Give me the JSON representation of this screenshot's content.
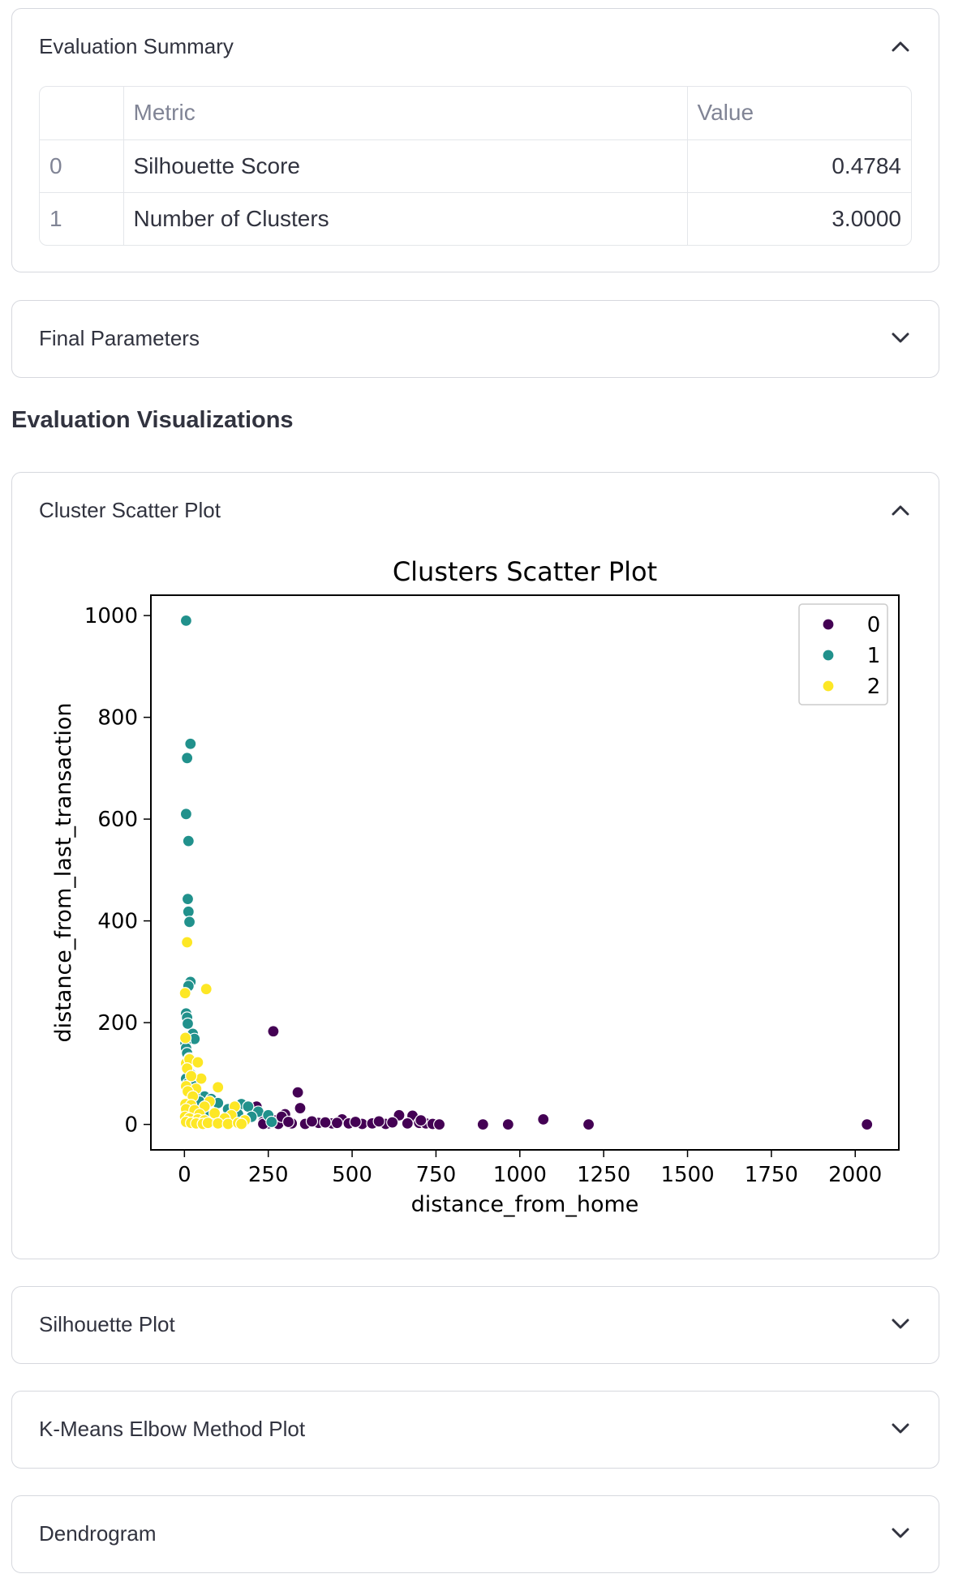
{
  "evaluation_summary": {
    "title": "Evaluation Summary",
    "expanded": true,
    "table": {
      "columns": [
        "",
        "Metric",
        "Value"
      ],
      "rows": [
        {
          "index": "0",
          "metric": "Silhouette Score",
          "value": "0.4784"
        },
        {
          "index": "1",
          "metric": "Number of Clusters",
          "value": "3.0000"
        }
      ]
    }
  },
  "final_parameters": {
    "title": "Final Parameters",
    "expanded": false
  },
  "section_heading": "Evaluation Visualizations",
  "cluster_scatter": {
    "title": "Cluster Scatter Plot",
    "expanded": true
  },
  "silhouette_plot": {
    "title": "Silhouette Plot",
    "expanded": false
  },
  "elbow_plot": {
    "title": "K-Means Elbow Method Plot",
    "expanded": false
  },
  "dendrogram": {
    "title": "Dendrogram",
    "expanded": false
  },
  "icons": {
    "expanded": "chevron-up-icon",
    "collapsed": "chevron-down-icon"
  },
  "chart_data": {
    "type": "scatter",
    "title": "Clusters Scatter Plot",
    "xlabel": "distance_from_home",
    "ylabel": "distance_from_last_transaction",
    "xlim": [
      -100,
      2130
    ],
    "ylim": [
      -50,
      1040
    ],
    "xticks": [
      0,
      250,
      500,
      750,
      1000,
      1250,
      1500,
      1750,
      2000
    ],
    "yticks": [
      0,
      200,
      400,
      600,
      800,
      1000
    ],
    "grid": false,
    "legend": {
      "position": "top-right",
      "entries": [
        "0",
        "1",
        "2"
      ]
    },
    "series": [
      {
        "name": "0",
        "color": "#440154",
        "points": [
          [
            265,
            183
          ],
          [
            338,
            63
          ],
          [
            345,
            32
          ],
          [
            300,
            20
          ],
          [
            270,
            8
          ],
          [
            235,
            5
          ],
          [
            250,
            2
          ],
          [
            280,
            1
          ],
          [
            320,
            2
          ],
          [
            360,
            1
          ],
          [
            400,
            3
          ],
          [
            440,
            2
          ],
          [
            470,
            10
          ],
          [
            490,
            2
          ],
          [
            530,
            1
          ],
          [
            560,
            2
          ],
          [
            600,
            1
          ],
          [
            640,
            18
          ],
          [
            680,
            17
          ],
          [
            700,
            3
          ],
          [
            720,
            2
          ],
          [
            740,
            1
          ],
          [
            760,
            0
          ],
          [
            890,
            0
          ],
          [
            965,
            0
          ],
          [
            1070,
            10
          ],
          [
            1205,
            0
          ],
          [
            2035,
            0
          ],
          [
            215,
            35
          ],
          [
            290,
            15
          ],
          [
            310,
            5
          ],
          [
            380,
            6
          ],
          [
            420,
            4
          ],
          [
            455,
            3
          ],
          [
            510,
            5
          ],
          [
            580,
            6
          ],
          [
            620,
            4
          ],
          [
            665,
            2
          ],
          [
            705,
            8
          ],
          [
            235,
            1
          ]
        ]
      },
      {
        "name": "1",
        "color": "#21918c",
        "points": [
          [
            5,
            990
          ],
          [
            18,
            748
          ],
          [
            8,
            720
          ],
          [
            5,
            610
          ],
          [
            12,
            557
          ],
          [
            10,
            443
          ],
          [
            12,
            418
          ],
          [
            15,
            398
          ],
          [
            18,
            280
          ],
          [
            12,
            272
          ],
          [
            5,
            218
          ],
          [
            8,
            210
          ],
          [
            10,
            198
          ],
          [
            25,
            178
          ],
          [
            30,
            168
          ],
          [
            3,
            160
          ],
          [
            5,
            150
          ],
          [
            8,
            140
          ],
          [
            15,
            130
          ],
          [
            5,
            118
          ],
          [
            20,
            98
          ],
          [
            5,
            90
          ],
          [
            10,
            80
          ],
          [
            30,
            75
          ],
          [
            60,
            55
          ],
          [
            80,
            50
          ],
          [
            100,
            42
          ],
          [
            170,
            40
          ],
          [
            190,
            35
          ],
          [
            220,
            25
          ],
          [
            30,
            60
          ],
          [
            45,
            45
          ],
          [
            130,
            30
          ],
          [
            160,
            20
          ],
          [
            200,
            15
          ],
          [
            250,
            18
          ],
          [
            110,
            10
          ],
          [
            70,
            20
          ],
          [
            260,
            5
          ],
          [
            90,
            8
          ]
        ]
      },
      {
        "name": "2",
        "color": "#fde725",
        "points": [
          [
            8,
            358
          ],
          [
            65,
            266
          ],
          [
            2,
            258
          ],
          [
            3,
            170
          ],
          [
            5,
            120
          ],
          [
            15,
            128
          ],
          [
            40,
            122
          ],
          [
            8,
            110
          ],
          [
            50,
            90
          ],
          [
            20,
            95
          ],
          [
            5,
            75
          ],
          [
            35,
            70
          ],
          [
            100,
            73
          ],
          [
            10,
            65
          ],
          [
            25,
            55
          ],
          [
            75,
            45
          ],
          [
            3,
            40
          ],
          [
            20,
            38
          ],
          [
            60,
            35
          ],
          [
            150,
            35
          ],
          [
            5,
            30
          ],
          [
            30,
            28
          ],
          [
            45,
            20
          ],
          [
            90,
            22
          ],
          [
            140,
            18
          ],
          [
            2,
            15
          ],
          [
            15,
            12
          ],
          [
            40,
            10
          ],
          [
            60,
            8
          ],
          [
            120,
            12
          ],
          [
            180,
            8
          ],
          [
            5,
            5
          ],
          [
            20,
            3
          ],
          [
            35,
            2
          ],
          [
            55,
            1
          ],
          [
            70,
            3
          ],
          [
            100,
            2
          ],
          [
            130,
            1
          ],
          [
            160,
            3
          ],
          [
            170,
            1
          ]
        ]
      }
    ]
  }
}
